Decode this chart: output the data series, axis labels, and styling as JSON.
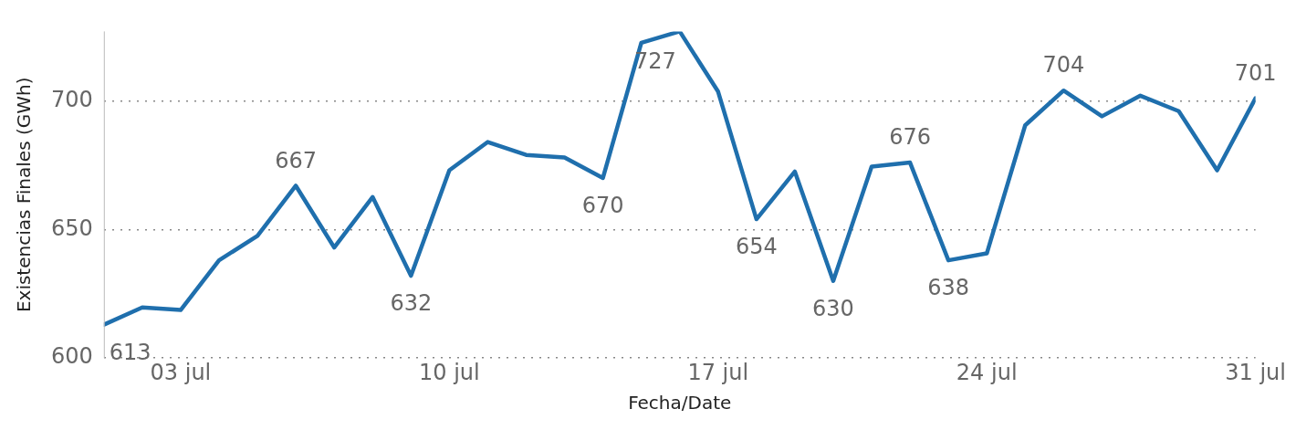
{
  "chart_data": {
    "type": "line",
    "xlabel": "Fecha/Date",
    "ylabel": "Existencias Finales (GWh)",
    "x": [
      "--07-01",
      "--07-02",
      "--07-03",
      "--07-04",
      "--07-05",
      "--07-06",
      "--07-07",
      "--07-08",
      "--07-09",
      "--07-10",
      "--07-11",
      "--07-12",
      "--07-13",
      "--07-14",
      "--07-15",
      "--07-16",
      "--07-17",
      "--07-18",
      "--07-19",
      "--07-20",
      "--07-21",
      "--07-22",
      "--07-23",
      "--07-24",
      "--07-25",
      "--07-26",
      "--07-27",
      "--07-28",
      "--07-29",
      "--07-30",
      "--07-31"
    ],
    "series": [
      {
        "color": "#1f6fad",
        "values": [
          613,
          619.7,
          618.7,
          638,
          647.5,
          667,
          643,
          662.6,
          632,
          673,
          684,
          679,
          678,
          670,
          722.6,
          727,
          703.6,
          654,
          672.5,
          630,
          674.4,
          676,
          638,
          640.7,
          690.5,
          704,
          694,
          702,
          696,
          673,
          701
        ],
        "value_labels": [
          "613",
          null,
          null,
          null,
          null,
          "667",
          null,
          null,
          "632",
          null,
          null,
          null,
          null,
          "670",
          null,
          "727",
          null,
          "654",
          null,
          "630",
          null,
          "676",
          "638",
          null,
          null,
          "704",
          null,
          null,
          null,
          null,
          "701"
        ]
      }
    ],
    "xlim": [
      "--07-01",
      "--07-31"
    ],
    "xticks": [
      {
        "value": "--07-03",
        "label": "03 jul"
      },
      {
        "value": "--07-10",
        "label": "10 jul"
      },
      {
        "value": "--07-17",
        "label": "17 jul"
      },
      {
        "value": "--07-24",
        "label": "24 jul"
      },
      {
        "value": "--07-31",
        "label": "31 jul"
      }
    ],
    "ylim": [
      600,
      727
    ],
    "yticks": [
      600,
      650,
      700
    ],
    "grid": "y",
    "legend": false,
    "marker": "none",
    "line_style": "solid"
  }
}
